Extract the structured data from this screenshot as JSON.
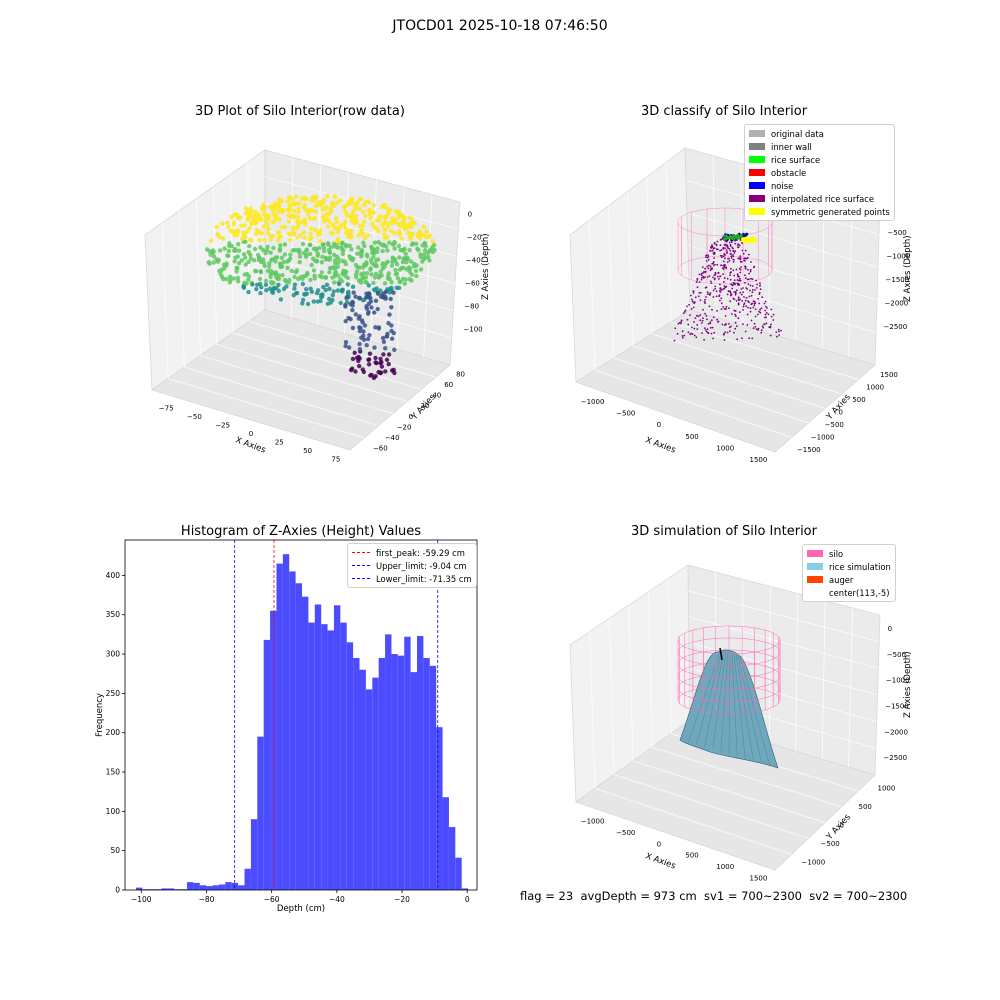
{
  "suptitle": "JTOCD01 2025-10-18 07:46:50",
  "footer": "flag = 23  avgDepth = 973 cm  sv1 = 700~2300  sv2 = 700~2300",
  "chart_data": [
    {
      "type": "scatter",
      "title": "3D Plot of Silo Interior(row data)",
      "xlabel": "X Axies",
      "ylabel": "Y Axies",
      "zlabel": "Z Axies (Depth)",
      "x_ticks": [
        "−75",
        "−50",
        "−25",
        "0",
        "25",
        "50",
        "75"
      ],
      "y_ticks": [
        "−60",
        "−40",
        "−20",
        "0",
        "20",
        "40",
        "60",
        "80"
      ],
      "z_ticks": [
        "0",
        "−20",
        "−40",
        "−60",
        "−80",
        "−100"
      ],
      "xlim": [
        -90,
        90
      ],
      "ylim": [
        -65,
        85
      ],
      "zlim": [
        -110,
        5
      ],
      "colormap": "viridis",
      "colors": [
        "#440154",
        "#3b528b",
        "#21918c",
        "#5ec962",
        "#fde725"
      ]
    },
    {
      "type": "scatter",
      "title": "3D classify of Silo Interior",
      "xlabel": "X Axies",
      "ylabel": "Y Axies",
      "zlabel": "Z Axies (Depth)",
      "x_ticks": [
        "−1000",
        "−500",
        "0",
        "500",
        "1000",
        "1500"
      ],
      "y_ticks": [
        "−1500",
        "−1000",
        "−500",
        "0",
        "500",
        "1000",
        "1500"
      ],
      "z_ticks": [
        "−500",
        "−1000",
        "−1500",
        "−2000",
        "−2500"
      ],
      "legend": [
        {
          "label": "original data",
          "color": "#b0b0b0"
        },
        {
          "label": "inner wall",
          "color": "#808080"
        },
        {
          "label": "rice surface",
          "color": "#00ff00"
        },
        {
          "label": "obstacle",
          "color": "#ff0000"
        },
        {
          "label": "noise",
          "color": "#0000ff"
        },
        {
          "label": "interpolated rice surface",
          "color": "#800080"
        },
        {
          "label": "symmetric generated points",
          "color": "#ffff00"
        }
      ],
      "wall_color": "#ff69b4",
      "legend_position": "upper-right"
    },
    {
      "type": "bar",
      "title": "Histogram of Z-Axies (Height) Values",
      "xlabel": "Depth (cm)",
      "ylabel": "Frequency",
      "xlim": [
        -105,
        3
      ],
      "ylim": [
        0,
        445
      ],
      "x_ticks": [
        -100,
        -80,
        -60,
        -40,
        -20,
        0
      ],
      "x_tick_labels": [
        "−100",
        "−80",
        "−60",
        "−40",
        "−20",
        "0"
      ],
      "y_ticks": [
        0,
        50,
        100,
        150,
        200,
        250,
        300,
        350,
        400
      ],
      "bin_start": -101.65,
      "bin_width": 1.96,
      "values": [
        3,
        1,
        1,
        1,
        2,
        2,
        1,
        1,
        10,
        9,
        6,
        5,
        6,
        7,
        10,
        9,
        6,
        27,
        90,
        195,
        318,
        355,
        415,
        427,
        405,
        390,
        373,
        340,
        363,
        338,
        330,
        362,
        340,
        315,
        295,
        280,
        255,
        270,
        295,
        325,
        300,
        298,
        322,
        277,
        323,
        295,
        285,
        207,
        118,
        80,
        41,
        2
      ],
      "bar_color": "#4c4cff",
      "vlines": [
        {
          "label": "first_peak: -59.29 cm",
          "x": -59.29,
          "color": "#ff0000"
        },
        {
          "label": "Upper_limit: -9.04 cm",
          "x": -9.04,
          "color": "#0000ff"
        },
        {
          "label": "Lower_limit: -71.35 cm",
          "x": -71.35,
          "color": "#0000ff"
        }
      ],
      "legend_position": "upper-right"
    },
    {
      "type": "area",
      "title": "3D simulation of Silo Interior",
      "xlabel": "X Axies",
      "ylabel": "Y Axies",
      "zlabel": "Z Axies (Depth)",
      "x_ticks": [
        "−1000",
        "−500",
        "0",
        "500",
        "1000",
        "1500"
      ],
      "y_ticks": [
        "−1000",
        "−500",
        "0",
        "500",
        "1000"
      ],
      "z_ticks": [
        "0",
        "−500",
        "−1000",
        "−1500",
        "−2000",
        "−2500"
      ],
      "legend": [
        {
          "label": "silo",
          "color": "#ff69b4"
        },
        {
          "label": "rice simulation",
          "color": "#87ceeb"
        },
        {
          "label": "auger",
          "color": "#ff4500"
        },
        {
          "label": "center(113,-5)",
          "color": ""
        }
      ],
      "surface_color": "#6fa8bd",
      "legend_position": "upper-right"
    }
  ]
}
